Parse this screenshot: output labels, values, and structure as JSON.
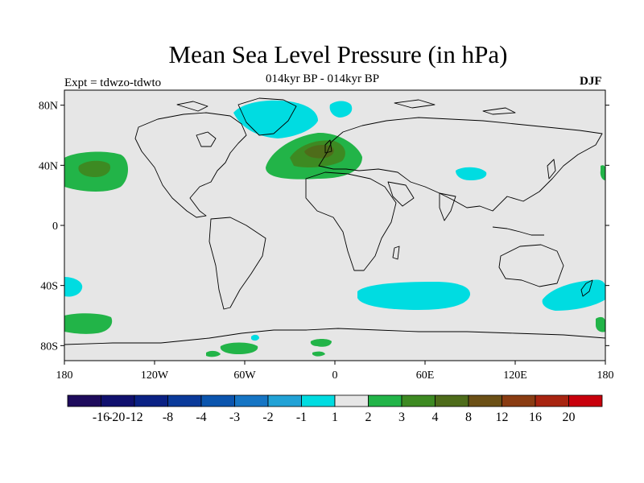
{
  "title": "Mean Sea Level Pressure (in hPa)",
  "subtitle": "014kyr BP - 014kyr BP",
  "experiment": "Expt = tdwzo-tdwto",
  "season": "DJF",
  "map": {
    "type": "filled-contour world map",
    "projection": "cylindrical equidistant",
    "lon_range": [
      -180,
      180
    ],
    "lat_range": [
      -90,
      90
    ],
    "lat_ticks": [
      "80N",
      "40N",
      "0",
      "40S",
      "80S"
    ],
    "lon_ticks": [
      "180",
      "120W",
      "60W",
      "0",
      "60E",
      "120E",
      "180"
    ]
  },
  "colorbar": {
    "labels": [
      "-20",
      "-16",
      "-12",
      "-8",
      "-4",
      "-3",
      "-2",
      "-1",
      "1",
      "2",
      "3",
      "4",
      "8",
      "12",
      "16",
      "20"
    ],
    "colors": [
      "#1e0b5c",
      "#10106e",
      "#0a2184",
      "#0a3a9a",
      "#0b55ae",
      "#1675c4",
      "#21a2d6",
      "#00dce1",
      "#e6e6e6",
      "#22b448",
      "#3d8a22",
      "#4e6c1a",
      "#6b5016",
      "#8a3c12",
      "#a82410",
      "#c8000c"
    ]
  },
  "anomalies": [
    {
      "name": "north-pacific-positive",
      "color": "#22b448"
    },
    {
      "name": "north-pacific-core",
      "color": "#3d8a22"
    },
    {
      "name": "north-atlantic-positive",
      "color": "#22b448"
    },
    {
      "name": "north-atlantic-core",
      "color": "#3d8a22"
    },
    {
      "name": "europe-inner",
      "color": "#4e6c1a"
    },
    {
      "name": "greenland-negative",
      "color": "#00dce1"
    },
    {
      "name": "barents-negative",
      "color": "#00dce1"
    },
    {
      "name": "china-negative",
      "color": "#00dce1"
    },
    {
      "name": "south-atlantic-indian-negative",
      "color": "#00dce1"
    },
    {
      "name": "new-zealand-negative",
      "color": "#00dce1"
    },
    {
      "name": "south-pacific-positive",
      "color": "#22b448"
    },
    {
      "name": "southern-ocean-negative",
      "color": "#00dce1"
    },
    {
      "name": "antarctic-positive",
      "color": "#22b448"
    }
  ]
}
